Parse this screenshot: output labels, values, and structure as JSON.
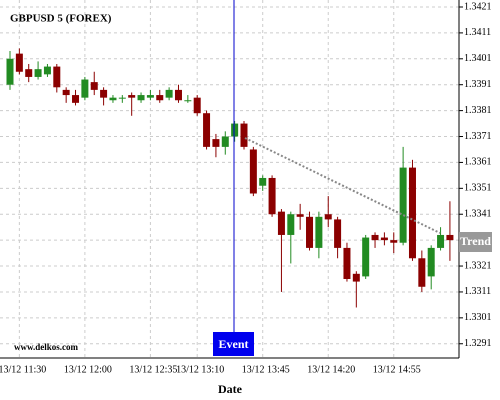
{
  "chart_data": {
    "type": "candlestick",
    "title": "GBPUSD 5 (FOREX)",
    "watermark": "www.delkos.com",
    "x_label": "Date",
    "event_label": "Event",
    "trend_label": "Trend",
    "up_color": "#228b22",
    "down_color": "#8b0000",
    "grid": true,
    "categories": [
      null,
      "13/12 11:30",
      null,
      null,
      null,
      null,
      null,
      null,
      "13/12 12:00",
      null,
      null,
      null,
      null,
      null,
      null,
      "13/12 12:35",
      null,
      null,
      null,
      null,
      "13/12 13:10",
      null,
      null,
      null,
      null,
      null,
      null,
      "13/12 13:45",
      null,
      null,
      null,
      null,
      null,
      null,
      "13/12 14:20",
      null,
      null,
      null,
      null,
      null,
      null,
      "13/12 14:55",
      null,
      null,
      null,
      null,
      null,
      null
    ],
    "open": [
      1.3391,
      1.3403,
      1.3397,
      1.3394,
      1.3395,
      1.3398,
      1.3389,
      1.3387,
      1.3386,
      1.3392,
      1.3389,
      1.3385,
      1.3386,
      1.3387,
      1.3385,
      1.3386,
      1.3387,
      1.3386,
      1.3389,
      1.3385,
      1.3386,
      1.338,
      1.337,
      1.3367,
      1.3371,
      1.3376,
      1.3366,
      1.3352,
      1.3355,
      1.3342,
      1.3333,
      1.3341,
      1.334,
      1.3328,
      1.3341,
      1.3339,
      1.3328,
      1.3318,
      1.3317,
      1.3333,
      1.3332,
      1.3331,
      1.333,
      1.3359,
      1.3324,
      1.3317,
      1.3328,
      1.3333
    ],
    "high": [
      1.3404,
      1.3405,
      1.3399,
      1.34,
      1.3399,
      1.3399,
      1.339,
      1.3389,
      1.3394,
      1.3396,
      1.339,
      1.3387,
      1.3387,
      1.3388,
      1.3388,
      1.3389,
      1.3389,
      1.339,
      1.3391,
      1.3387,
      1.3387,
      1.3381,
      1.3372,
      1.3373,
      1.3377,
      1.3377,
      1.3367,
      1.3356,
      1.3356,
      1.3343,
      1.3342,
      1.3345,
      1.3342,
      1.3342,
      1.3348,
      1.334,
      1.333,
      1.3319,
      1.3333,
      1.3334,
      1.3334,
      1.3334,
      1.3367,
      1.3362,
      1.3327,
      1.3329,
      1.3336,
      1.3346
    ],
    "low": [
      1.3389,
      1.3395,
      1.3392,
      1.3393,
      1.3394,
      1.3388,
      1.3384,
      1.3383,
      1.3385,
      1.3387,
      1.3383,
      1.3384,
      1.3384,
      1.3379,
      1.3384,
      1.3385,
      1.3384,
      1.3385,
      1.3384,
      1.3384,
      1.3379,
      1.3366,
      1.3363,
      1.3364,
      1.3369,
      1.3366,
      1.3348,
      1.335,
      1.334,
      1.3311,
      1.3322,
      1.3335,
      1.3327,
      1.3324,
      1.3336,
      1.3324,
      1.3315,
      1.3305,
      1.3316,
      1.3328,
      1.3329,
      1.3326,
      1.3329,
      1.3323,
      1.3311,
      1.3312,
      1.3327,
      1.3323
    ],
    "close": [
      1.3401,
      1.3396,
      1.3394,
      1.3397,
      1.3398,
      1.339,
      1.3387,
      1.3384,
      1.3393,
      1.3389,
      1.3386,
      1.3386,
      1.3386,
      1.3386,
      1.3387,
      1.3387,
      1.3385,
      1.3389,
      1.3385,
      1.3385,
      1.338,
      1.3367,
      1.3367,
      1.3371,
      1.3376,
      1.3367,
      1.3349,
      1.3355,
      1.3341,
      1.3333,
      1.3341,
      1.334,
      1.3328,
      1.334,
      1.3339,
      1.3328,
      1.3316,
      1.3315,
      1.3332,
      1.3331,
      1.3331,
      1.333,
      1.3359,
      1.3324,
      1.3313,
      1.3328,
      1.3333,
      1.3331
    ],
    "ylim": [
      1.32855,
      1.34237
    ],
    "yticks": [
      1.3291,
      1.3301,
      1.3311,
      1.3321,
      1.3331,
      1.3341,
      1.3351,
      1.3361,
      1.3371,
      1.3381,
      1.3391,
      1.3401,
      1.3411,
      1.3421
    ]
  }
}
